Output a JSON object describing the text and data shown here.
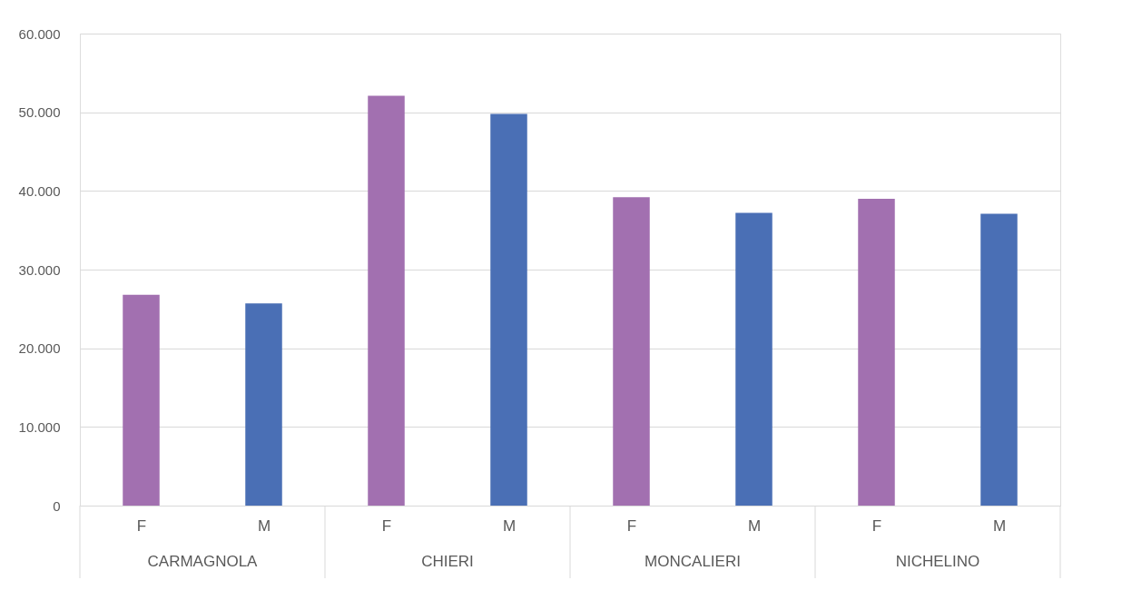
{
  "chart_data": {
    "type": "bar",
    "categories": [
      "F",
      "M",
      "F",
      "M",
      "F",
      "M",
      "F",
      "M"
    ],
    "values": [
      26800,
      25700,
      52100,
      49800,
      39200,
      37200,
      39000,
      37100
    ],
    "colors": [
      "#a270b0",
      "#4a6fb5",
      "#a270b0",
      "#4a6fb5",
      "#a270b0",
      "#4a6fb5",
      "#a270b0",
      "#4a6fb5"
    ],
    "annotations": [
      "CARMAGNOLA",
      "CHIERI",
      "MONCALIERI",
      "NICHELINO"
    ],
    "ylim": [
      0,
      60000
    ],
    "yticks": [
      0,
      {
        "value": 10000,
        "label": "10.000"
      },
      {
        "value": 20000,
        "label": "20.000"
      },
      {
        "value": 30000,
        "label": "30.000"
      },
      {
        "value": 40000,
        "label": "40.000"
      },
      {
        "value": 50000,
        "label": "50.000"
      },
      {
        "value": 60000,
        "label": "60.000"
      }
    ],
    "grid": "y"
  }
}
